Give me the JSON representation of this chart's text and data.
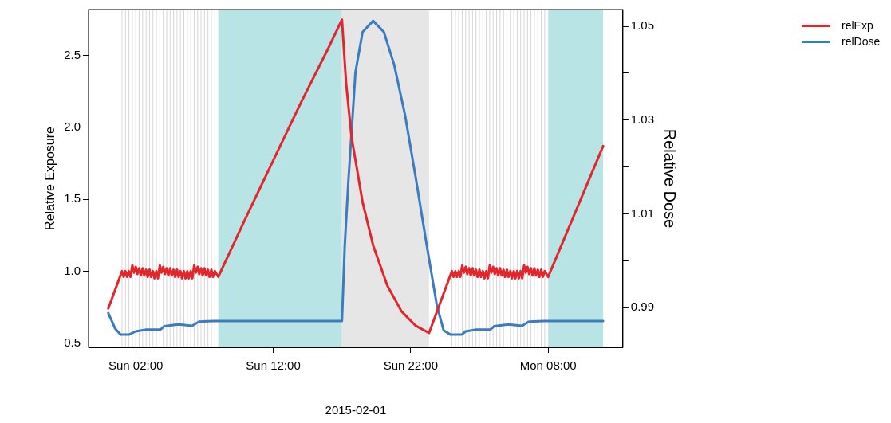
{
  "chart_data": {
    "type": "line",
    "xlabel": "2015-02-01",
    "ylabel": "Relative Exposure",
    "y2label": "Relative Dose",
    "xlim": [
      "2015-01-31T22:34",
      "2015-02-02T13:26"
    ],
    "xticks": [
      {
        "value": "2015-02-01T02:00",
        "label": "Sun 02:00"
      },
      {
        "value": "2015-02-01T12:00",
        "label": "Sun 12:00"
      },
      {
        "value": "2015-02-01T22:00",
        "label": "Sun 22:00"
      },
      {
        "value": "2015-02-02T08:00",
        "label": "Mon 08:00"
      }
    ],
    "ylim": [
      0.47,
      2.82
    ],
    "yticks": [
      {
        "value": 0.5,
        "label": "0.5"
      },
      {
        "value": 1,
        "label": "1.0"
      },
      {
        "value": 1.5,
        "label": "1.5"
      },
      {
        "value": 2,
        "label": "2.0"
      },
      {
        "value": 2.5,
        "label": "2.5"
      }
    ],
    "y2lim": [
      0.9815,
      1.0536
    ],
    "y2ticks": [
      {
        "value": 0.99,
        "label": "0.99"
      },
      {
        "value": 1.0,
        "label": null
      },
      {
        "value": 1.01,
        "label": "1.01"
      },
      {
        "value": 1.02,
        "label": null
      },
      {
        "value": 1.03,
        "label": "1.03"
      },
      {
        "value": 1.04,
        "label": null
      },
      {
        "value": 1.05,
        "label": "1.05"
      }
    ],
    "legend": "top right",
    "marker": "none",
    "line_style": "solid",
    "series": [
      {
        "name": "relExp",
        "color": "#e3262b",
        "x": [
          "2015-02-01T00:00",
          "2015-02-01T01:00",
          "2015-02-01T01:07",
          "2015-02-01T01:15",
          "2015-02-01T01:22",
          "2015-02-01T01:30",
          "2015-02-01T01:37",
          "2015-02-01T01:45",
          "2015-02-01T01:52",
          "2015-02-01T02:00",
          "2015-02-01T02:07",
          "2015-02-01T02:15",
          "2015-02-01T02:22",
          "2015-02-01T02:30",
          "2015-02-01T02:37",
          "2015-02-01T02:45",
          "2015-02-01T02:52",
          "2015-02-01T03:00",
          "2015-02-01T03:07",
          "2015-02-01T03:15",
          "2015-02-01T03:22",
          "2015-02-01T03:30",
          "2015-02-01T03:37",
          "2015-02-01T03:45",
          "2015-02-01T03:52",
          "2015-02-01T04:00",
          "2015-02-01T04:07",
          "2015-02-01T04:15",
          "2015-02-01T04:22",
          "2015-02-01T04:30",
          "2015-02-01T04:37",
          "2015-02-01T04:45",
          "2015-02-01T04:52",
          "2015-02-01T05:00",
          "2015-02-01T05:07",
          "2015-02-01T05:15",
          "2015-02-01T05:22",
          "2015-02-01T05:30",
          "2015-02-01T05:37",
          "2015-02-01T05:45",
          "2015-02-01T05:52",
          "2015-02-01T06:00",
          "2015-02-01T06:07",
          "2015-02-01T06:15",
          "2015-02-01T06:22",
          "2015-02-01T06:30",
          "2015-02-01T06:37",
          "2015-02-01T06:45",
          "2015-02-01T06:52",
          "2015-02-01T07:00",
          "2015-02-01T07:07",
          "2015-02-01T07:15",
          "2015-02-01T07:22",
          "2015-02-01T07:30",
          "2015-02-01T07:37",
          "2015-02-01T07:45",
          "2015-02-01T08:00",
          "2015-02-01T10:00",
          "2015-02-01T12:00",
          "2015-02-01T14:00",
          "2015-02-01T16:00",
          "2015-02-01T17:00",
          "2015-02-01T17:18",
          "2015-02-01T17:42",
          "2015-02-01T18:30",
          "2015-02-01T19:16",
          "2015-02-01T20:18",
          "2015-02-01T21:20",
          "2015-02-01T22:22",
          "2015-02-01T23:20",
          "2015-02-02T01:00",
          "2015-02-02T01:07",
          "2015-02-02T01:15",
          "2015-02-02T01:22",
          "2015-02-02T01:30",
          "2015-02-02T01:37",
          "2015-02-02T01:45",
          "2015-02-02T01:52",
          "2015-02-02T02:00",
          "2015-02-02T02:07",
          "2015-02-02T02:15",
          "2015-02-02T02:22",
          "2015-02-02T02:30",
          "2015-02-02T02:37",
          "2015-02-02T02:45",
          "2015-02-02T02:52",
          "2015-02-02T03:00",
          "2015-02-02T03:07",
          "2015-02-02T03:15",
          "2015-02-02T03:22",
          "2015-02-02T03:30",
          "2015-02-02T03:37",
          "2015-02-02T03:45",
          "2015-02-02T03:52",
          "2015-02-02T04:00",
          "2015-02-02T04:07",
          "2015-02-02T04:15",
          "2015-02-02T04:22",
          "2015-02-02T04:30",
          "2015-02-02T04:37",
          "2015-02-02T04:45",
          "2015-02-02T04:52",
          "2015-02-02T05:00",
          "2015-02-02T05:07",
          "2015-02-02T05:15",
          "2015-02-02T05:22",
          "2015-02-02T05:30",
          "2015-02-02T05:37",
          "2015-02-02T05:45",
          "2015-02-02T05:52",
          "2015-02-02T06:00",
          "2015-02-02T06:07",
          "2015-02-02T06:15",
          "2015-02-02T06:22",
          "2015-02-02T06:30",
          "2015-02-02T06:37",
          "2015-02-02T06:45",
          "2015-02-02T06:52",
          "2015-02-02T07:00",
          "2015-02-02T07:07",
          "2015-02-02T07:15",
          "2015-02-02T07:22",
          "2015-02-02T07:30",
          "2015-02-02T07:37",
          "2015-02-02T07:45",
          "2015-02-02T08:00",
          "2015-02-02T12:00"
        ],
        "values": [
          0.74,
          1.0,
          0.96,
          1.0,
          0.96,
          1.0,
          0.96,
          1.04,
          0.99,
          1.03,
          0.98,
          1.02,
          0.97,
          1.02,
          0.97,
          1.01,
          0.96,
          1.01,
          0.96,
          1.0,
          0.95,
          1.0,
          0.95,
          1.04,
          0.99,
          1.03,
          0.98,
          1.02,
          0.97,
          1.02,
          0.97,
          1.01,
          0.96,
          1.01,
          0.96,
          1.0,
          0.95,
          1.0,
          0.95,
          1.0,
          0.95,
          1.0,
          0.95,
          1.04,
          0.99,
          1.03,
          0.98,
          1.02,
          0.97,
          1.02,
          0.97,
          1.01,
          0.96,
          1.01,
          0.96,
          1.0,
          0.96,
          1.37,
          1.77,
          2.17,
          2.55,
          2.75,
          2.31,
          1.93,
          1.48,
          1.18,
          0.9,
          0.72,
          0.62,
          0.57,
          1.0,
          0.96,
          1.0,
          0.96,
          1.0,
          0.96,
          1.04,
          0.99,
          1.03,
          0.98,
          1.02,
          0.97,
          1.02,
          0.97,
          1.01,
          0.96,
          1.01,
          0.96,
          1.0,
          0.95,
          1.0,
          0.95,
          1.04,
          0.99,
          1.03,
          0.98,
          1.02,
          0.97,
          1.02,
          0.97,
          1.01,
          0.96,
          1.01,
          0.96,
          1.0,
          0.95,
          1.0,
          0.95,
          1.0,
          0.95,
          1.0,
          0.95,
          1.04,
          0.99,
          1.03,
          0.98,
          1.02,
          0.97,
          1.02,
          0.97,
          1.01,
          0.96,
          1.01,
          0.96,
          1.0,
          0.96,
          1.87
        ]
      },
      {
        "name": "relDose",
        "color": "#3a7cc0",
        "axis": "y2",
        "x": [
          "2015-02-01T00:00",
          "2015-02-01T00:30",
          "2015-02-01T00:54",
          "2015-02-01T01:30",
          "2015-02-01T02:00",
          "2015-02-01T02:46",
          "2015-02-01T03:48",
          "2015-02-01T04:04",
          "2015-02-01T05:06",
          "2015-02-01T06:06",
          "2015-02-01T06:36",
          "2015-02-01T07:42",
          "2015-02-01T17:00",
          "2015-02-01T17:12",
          "2015-02-01T17:28",
          "2015-02-01T17:59",
          "2015-02-01T18:30",
          "2015-02-01T19:16",
          "2015-02-01T20:03",
          "2015-02-01T20:48",
          "2015-02-01T21:36",
          "2015-02-01T22:22",
          "2015-02-01T23:06",
          "2015-02-01T23:54",
          "2015-02-02T00:24",
          "2015-02-02T00:54",
          "2015-02-02T01:42",
          "2015-02-02T02:00",
          "2015-02-02T02:46",
          "2015-02-02T03:48",
          "2015-02-02T04:04",
          "2015-02-02T05:06",
          "2015-02-02T06:06",
          "2015-02-02T06:36",
          "2015-02-02T07:42",
          "2015-02-02T12:00"
        ],
        "values": [
          0.9888,
          0.9855,
          0.9842,
          0.9842,
          0.9849,
          0.9853,
          0.9853,
          0.986,
          0.9864,
          0.9861,
          0.987,
          0.9871,
          0.9871,
          1.003,
          1.017,
          1.0403,
          1.0488,
          1.0512,
          1.0488,
          1.0418,
          1.0309,
          1.0177,
          1.0045,
          0.9905,
          0.9851,
          0.9842,
          0.9842,
          0.9849,
          0.9853,
          0.9853,
          0.986,
          0.9864,
          0.9861,
          0.987,
          0.9871,
          0.9871
        ]
      }
    ],
    "bands": [
      {
        "axis": "x",
        "from": "2015-02-01T08:00",
        "to": "2015-02-01T17:00",
        "color": "#b9e4e6"
      },
      {
        "axis": "x",
        "from": "2015-02-01T17:00",
        "to": "2015-02-01T23:20",
        "color": "#e6e6e6"
      },
      {
        "axis": "x",
        "from": "2015-02-02T08:00",
        "to": "2015-02-02T12:00",
        "color": "#b9e4e6"
      }
    ],
    "ref_lines": [
      {
        "axis": "x",
        "value": "2015-02-01T01:00",
        "color": "#d6d6d6"
      },
      {
        "axis": "x",
        "value": "2015-02-01T01:15",
        "color": "#d6d6d6"
      },
      {
        "axis": "x",
        "value": "2015-02-01T01:30",
        "color": "#d6d6d6"
      },
      {
        "axis": "x",
        "value": "2015-02-01T01:45",
        "color": "#d6d6d6"
      },
      {
        "axis": "x",
        "value": "2015-02-01T02:00",
        "color": "#d6d6d6"
      },
      {
        "axis": "x",
        "value": "2015-02-01T02:15",
        "color": "#d6d6d6"
      },
      {
        "axis": "x",
        "value": "2015-02-01T02:30",
        "color": "#d6d6d6"
      },
      {
        "axis": "x",
        "value": "2015-02-01T02:45",
        "color": "#d6d6d6"
      },
      {
        "axis": "x",
        "value": "2015-02-01T03:00",
        "color": "#d6d6d6"
      },
      {
        "axis": "x",
        "value": "2015-02-01T03:15",
        "color": "#d6d6d6"
      },
      {
        "axis": "x",
        "value": "2015-02-01T03:30",
        "color": "#d6d6d6"
      },
      {
        "axis": "x",
        "value": "2015-02-01T03:45",
        "color": "#d6d6d6"
      },
      {
        "axis": "x",
        "value": "2015-02-01T04:00",
        "color": "#d6d6d6"
      },
      {
        "axis": "x",
        "value": "2015-02-01T04:15",
        "color": "#d6d6d6"
      },
      {
        "axis": "x",
        "value": "2015-02-01T04:30",
        "color": "#d6d6d6"
      },
      {
        "axis": "x",
        "value": "2015-02-01T04:45",
        "color": "#d6d6d6"
      },
      {
        "axis": "x",
        "value": "2015-02-01T05:00",
        "color": "#d6d6d6"
      },
      {
        "axis": "x",
        "value": "2015-02-01T05:15",
        "color": "#d6d6d6"
      },
      {
        "axis": "x",
        "value": "2015-02-01T05:30",
        "color": "#d6d6d6"
      },
      {
        "axis": "x",
        "value": "2015-02-01T05:45",
        "color": "#d6d6d6"
      },
      {
        "axis": "x",
        "value": "2015-02-01T06:00",
        "color": "#d6d6d6"
      },
      {
        "axis": "x",
        "value": "2015-02-01T06:15",
        "color": "#d6d6d6"
      },
      {
        "axis": "x",
        "value": "2015-02-01T06:30",
        "color": "#d6d6d6"
      },
      {
        "axis": "x",
        "value": "2015-02-01T06:45",
        "color": "#d6d6d6"
      },
      {
        "axis": "x",
        "value": "2015-02-01T07:00",
        "color": "#d6d6d6"
      },
      {
        "axis": "x",
        "value": "2015-02-01T07:15",
        "color": "#d6d6d6"
      },
      {
        "axis": "x",
        "value": "2015-02-01T07:30",
        "color": "#d6d6d6"
      },
      {
        "axis": "x",
        "value": "2015-02-01T07:45",
        "color": "#d6d6d6"
      },
      {
        "axis": "x",
        "value": "2015-02-02T01:00",
        "color": "#d6d6d6"
      },
      {
        "axis": "x",
        "value": "2015-02-02T01:15",
        "color": "#d6d6d6"
      },
      {
        "axis": "x",
        "value": "2015-02-02T01:30",
        "color": "#d6d6d6"
      },
      {
        "axis": "x",
        "value": "2015-02-02T01:45",
        "color": "#d6d6d6"
      },
      {
        "axis": "x",
        "value": "2015-02-02T02:00",
        "color": "#d6d6d6"
      },
      {
        "axis": "x",
        "value": "2015-02-02T02:15",
        "color": "#d6d6d6"
      },
      {
        "axis": "x",
        "value": "2015-02-02T02:30",
        "color": "#d6d6d6"
      },
      {
        "axis": "x",
        "value": "2015-02-02T02:45",
        "color": "#d6d6d6"
      },
      {
        "axis": "x",
        "value": "2015-02-02T03:00",
        "color": "#d6d6d6"
      },
      {
        "axis": "x",
        "value": "2015-02-02T03:15",
        "color": "#d6d6d6"
      },
      {
        "axis": "x",
        "value": "2015-02-02T03:30",
        "color": "#d6d6d6"
      },
      {
        "axis": "x",
        "value": "2015-02-02T03:45",
        "color": "#d6d6d6"
      },
      {
        "axis": "x",
        "value": "2015-02-02T04:00",
        "color": "#d6d6d6"
      },
      {
        "axis": "x",
        "value": "2015-02-02T04:15",
        "color": "#d6d6d6"
      },
      {
        "axis": "x",
        "value": "2015-02-02T04:30",
        "color": "#d6d6d6"
      },
      {
        "axis": "x",
        "value": "2015-02-02T04:45",
        "color": "#d6d6d6"
      },
      {
        "axis": "x",
        "value": "2015-02-02T05:00",
        "color": "#d6d6d6"
      },
      {
        "axis": "x",
        "value": "2015-02-02T05:15",
        "color": "#d6d6d6"
      },
      {
        "axis": "x",
        "value": "2015-02-02T05:30",
        "color": "#d6d6d6"
      },
      {
        "axis": "x",
        "value": "2015-02-02T05:45",
        "color": "#d6d6d6"
      },
      {
        "axis": "x",
        "value": "2015-02-02T06:00",
        "color": "#d6d6d6"
      },
      {
        "axis": "x",
        "value": "2015-02-02T06:15",
        "color": "#d6d6d6"
      },
      {
        "axis": "x",
        "value": "2015-02-02T06:30",
        "color": "#d6d6d6"
      },
      {
        "axis": "x",
        "value": "2015-02-02T06:45",
        "color": "#d6d6d6"
      },
      {
        "axis": "x",
        "value": "2015-02-02T07:00",
        "color": "#d6d6d6"
      },
      {
        "axis": "x",
        "value": "2015-02-02T07:15",
        "color": "#d6d6d6"
      },
      {
        "axis": "x",
        "value": "2015-02-02T07:30",
        "color": "#d6d6d6"
      },
      {
        "axis": "x",
        "value": "2015-02-02T07:45",
        "color": "#d6d6d6"
      }
    ]
  }
}
